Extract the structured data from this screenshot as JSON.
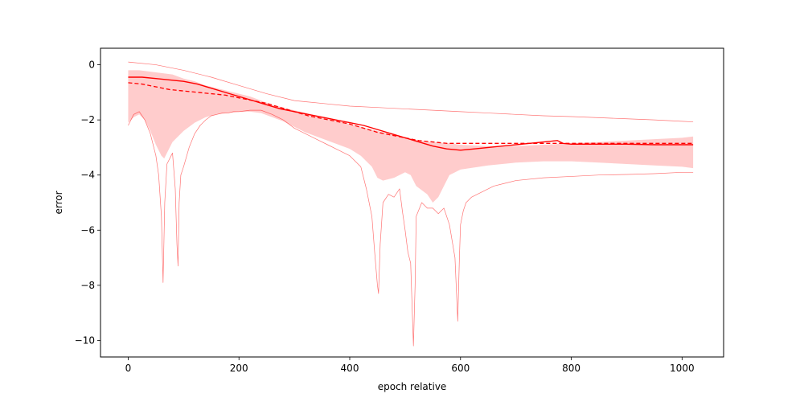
{
  "chart_data": {
    "type": "line",
    "title": "",
    "xlabel": "epoch relative",
    "ylabel": "error",
    "xlim": [
      -50,
      1075
    ],
    "ylim": [
      -10.6,
      0.6
    ],
    "xticks": [
      0,
      200,
      400,
      600,
      800,
      1000
    ],
    "xtick_labels": [
      "0",
      "200",
      "400",
      "600",
      "800",
      "1000"
    ],
    "yticks": [
      0,
      -2,
      -4,
      -6,
      -8,
      -10
    ],
    "ytick_labels": [
      "0",
      "−2",
      "−4",
      "−6",
      "−8",
      "−10"
    ],
    "grid": false,
    "legend": false,
    "color": "#ff0000",
    "band_color": "#ffcccc",
    "series": [
      {
        "role": "solid",
        "style": "solid",
        "x": [
          0,
          25,
          50,
          75,
          100,
          125,
          150,
          175,
          200,
          225,
          250,
          275,
          300,
          325,
          350,
          375,
          400,
          425,
          450,
          475,
          500,
          525,
          550,
          575,
          600,
          625,
          650,
          675,
          700,
          725,
          750,
          775,
          785,
          800,
          850,
          900,
          950,
          1000,
          1020
        ],
        "y": [
          -0.45,
          -0.45,
          -0.5,
          -0.55,
          -0.6,
          -0.7,
          -0.85,
          -1.0,
          -1.15,
          -1.3,
          -1.45,
          -1.6,
          -1.7,
          -1.8,
          -1.9,
          -2.0,
          -2.1,
          -2.2,
          -2.35,
          -2.5,
          -2.65,
          -2.8,
          -2.95,
          -3.05,
          -3.1,
          -3.05,
          -3.0,
          -2.95,
          -2.9,
          -2.85,
          -2.8,
          -2.75,
          -2.85,
          -2.88,
          -2.88,
          -2.88,
          -2.9,
          -2.9,
          -2.9
        ]
      },
      {
        "role": "dashed",
        "style": "dashed",
        "x": [
          0,
          25,
          50,
          75,
          100,
          125,
          150,
          175,
          200,
          225,
          250,
          275,
          300,
          325,
          350,
          375,
          400,
          425,
          450,
          475,
          500,
          525,
          550,
          575,
          600,
          650,
          700,
          750,
          800,
          850,
          900,
          950,
          1000,
          1020
        ],
        "y": [
          -0.65,
          -0.7,
          -0.8,
          -0.9,
          -0.95,
          -1.0,
          -1.05,
          -1.1,
          -1.2,
          -1.3,
          -1.4,
          -1.55,
          -1.7,
          -1.85,
          -1.95,
          -2.05,
          -2.15,
          -2.3,
          -2.45,
          -2.55,
          -2.65,
          -2.75,
          -2.8,
          -2.85,
          -2.85,
          -2.85,
          -2.85,
          -2.85,
          -2.85,
          -2.85,
          -2.85,
          -2.85,
          -2.85,
          -2.85
        ]
      },
      {
        "role": "max",
        "style": "thin",
        "x": [
          0,
          50,
          100,
          150,
          200,
          250,
          300,
          350,
          400,
          450,
          500,
          550,
          600,
          650,
          700,
          750,
          800,
          850,
          900,
          950,
          1000,
          1020
        ],
        "y": [
          0.1,
          0.0,
          -0.2,
          -0.45,
          -0.75,
          -1.05,
          -1.3,
          -1.4,
          -1.5,
          -1.55,
          -1.6,
          -1.65,
          -1.7,
          -1.75,
          -1.8,
          -1.85,
          -1.88,
          -1.92,
          -1.96,
          -2.0,
          -2.05,
          -2.07
        ]
      },
      {
        "role": "min",
        "style": "thin",
        "x": [
          0,
          10,
          20,
          30,
          40,
          50,
          55,
          60,
          63,
          66,
          70,
          80,
          85,
          88,
          90,
          92,
          95,
          100,
          110,
          120,
          130,
          140,
          150,
          160,
          170,
          180,
          190,
          200,
          220,
          240,
          260,
          280,
          300,
          320,
          340,
          360,
          380,
          400,
          420,
          430,
          440,
          445,
          450,
          452,
          455,
          460,
          470,
          480,
          490,
          495,
          500,
          505,
          510,
          515,
          518,
          520,
          530,
          540,
          550,
          560,
          570,
          580,
          590,
          595,
          598,
          600,
          605,
          610,
          620,
          640,
          660,
          680,
          700,
          750,
          800,
          850,
          900,
          950,
          1000,
          1020
        ],
        "y": [
          -2.2,
          -1.8,
          -1.7,
          -2.0,
          -2.5,
          -3.3,
          -4.0,
          -5.5,
          -7.9,
          -5.0,
          -3.6,
          -3.2,
          -4.5,
          -6.5,
          -7.3,
          -5.0,
          -4.0,
          -3.7,
          -3.0,
          -2.5,
          -2.2,
          -2.0,
          -1.85,
          -1.8,
          -1.75,
          -1.75,
          -1.7,
          -1.7,
          -1.65,
          -1.65,
          -1.8,
          -2.0,
          -2.3,
          -2.5,
          -2.7,
          -2.9,
          -3.1,
          -3.3,
          -3.7,
          -4.5,
          -5.5,
          -6.8,
          -8.0,
          -8.3,
          -6.5,
          -5.0,
          -4.7,
          -4.8,
          -4.5,
          -5.3,
          -6.0,
          -6.8,
          -7.2,
          -10.2,
          -8.0,
          -5.5,
          -5.0,
          -5.2,
          -5.2,
          -5.4,
          -5.2,
          -5.8,
          -7.0,
          -9.3,
          -7.0,
          -5.8,
          -5.3,
          -5.0,
          -4.8,
          -4.6,
          -4.4,
          -4.3,
          -4.2,
          -4.1,
          -4.05,
          -4.0,
          -3.98,
          -3.95,
          -3.9,
          -3.9
        ]
      },
      {
        "role": "band_upper",
        "style": "fill",
        "x": [
          0,
          20,
          40,
          60,
          80,
          100,
          120,
          140,
          160,
          180,
          200,
          220,
          240,
          260,
          280,
          300,
          320,
          340,
          360,
          380,
          400,
          420,
          440,
          460,
          480,
          500,
          520,
          540,
          560,
          580,
          600,
          650,
          700,
          750,
          800,
          850,
          900,
          950,
          1000,
          1020
        ],
        "y": [
          -0.2,
          -0.2,
          -0.25,
          -0.3,
          -0.35,
          -0.5,
          -0.6,
          -0.75,
          -0.85,
          -0.95,
          -1.05,
          -1.15,
          -1.3,
          -1.45,
          -1.55,
          -1.65,
          -1.75,
          -1.85,
          -1.95,
          -2.05,
          -2.15,
          -2.25,
          -2.35,
          -2.45,
          -2.55,
          -2.65,
          -2.72,
          -2.78,
          -2.82,
          -2.85,
          -2.9,
          -2.95,
          -2.95,
          -2.9,
          -2.85,
          -2.8,
          -2.75,
          -2.7,
          -2.65,
          -2.6
        ]
      },
      {
        "role": "band_lower",
        "style": "fill",
        "x": [
          0,
          10,
          20,
          30,
          40,
          50,
          60,
          65,
          70,
          80,
          90,
          100,
          120,
          140,
          160,
          180,
          200,
          220,
          240,
          260,
          280,
          300,
          320,
          340,
          360,
          380,
          400,
          420,
          440,
          450,
          460,
          480,
          500,
          510,
          520,
          540,
          550,
          560,
          570,
          580,
          600,
          650,
          700,
          750,
          800,
          850,
          900,
          950,
          1000,
          1020
        ],
        "y": [
          -2.1,
          -1.9,
          -1.8,
          -2.0,
          -2.4,
          -2.9,
          -3.3,
          -3.4,
          -3.2,
          -2.8,
          -2.6,
          -2.4,
          -2.1,
          -1.9,
          -1.8,
          -1.75,
          -1.7,
          -1.7,
          -1.75,
          -1.9,
          -2.05,
          -2.25,
          -2.45,
          -2.6,
          -2.75,
          -2.9,
          -3.05,
          -3.3,
          -3.7,
          -4.1,
          -4.2,
          -4.1,
          -3.9,
          -4.0,
          -4.4,
          -4.7,
          -5.0,
          -4.8,
          -4.4,
          -4.0,
          -3.8,
          -3.65,
          -3.55,
          -3.5,
          -3.5,
          -3.55,
          -3.6,
          -3.65,
          -3.7,
          -3.75
        ]
      }
    ]
  }
}
